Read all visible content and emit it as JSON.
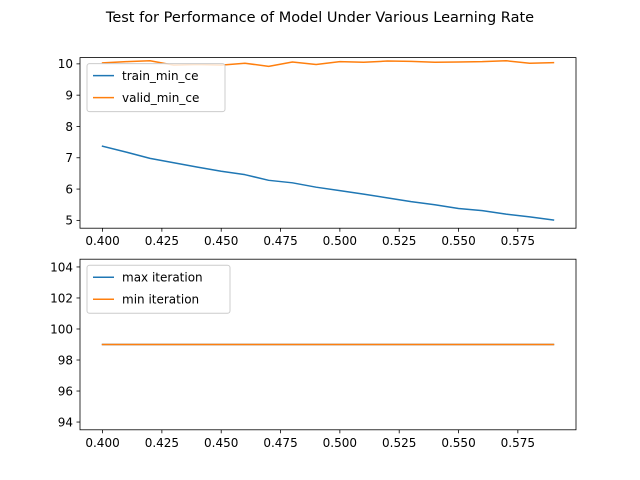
{
  "figure_title": "Test for Performance of Model Under Various Learning Rate",
  "chart_data": [
    {
      "type": "line",
      "x": [
        0.4,
        0.41,
        0.42,
        0.43,
        0.44,
        0.45,
        0.46,
        0.47,
        0.48,
        0.49,
        0.5,
        0.51,
        0.52,
        0.53,
        0.54,
        0.55,
        0.56,
        0.57,
        0.58,
        0.59
      ],
      "series": [
        {
          "name": "train_min_ce",
          "color": "#1f77b4",
          "values": [
            7.37,
            7.18,
            6.98,
            6.84,
            6.7,
            6.57,
            6.46,
            6.28,
            6.2,
            6.06,
            5.95,
            5.84,
            5.72,
            5.6,
            5.5,
            5.38,
            5.31,
            5.2,
            5.11,
            5.01
          ]
        },
        {
          "name": "valid_min_ce",
          "color": "#ff7f0e",
          "values": [
            10.03,
            10.07,
            10.1,
            9.96,
            9.98,
            9.96,
            10.02,
            9.92,
            10.06,
            9.98,
            10.07,
            10.05,
            10.09,
            10.08,
            10.05,
            10.06,
            10.07,
            10.1,
            10.02,
            10.04
          ]
        }
      ],
      "xlim": [
        0.3905,
        0.5995
      ],
      "ylim": [
        4.75,
        10.2
      ],
      "xticks": [
        0.4,
        0.425,
        0.45,
        0.475,
        0.5,
        0.525,
        0.55,
        0.575
      ],
      "xtick_labels": [
        "0.400",
        "0.425",
        "0.450",
        "0.475",
        "0.500",
        "0.525",
        "0.550",
        "0.575"
      ],
      "yticks": [
        5,
        6,
        7,
        8,
        9,
        10
      ],
      "ytick_labels": [
        "5",
        "6",
        "7",
        "8",
        "9",
        "10"
      ],
      "grid": false,
      "legend_position": "upper-left"
    },
    {
      "type": "line",
      "x": [
        0.4,
        0.41,
        0.42,
        0.43,
        0.44,
        0.45,
        0.46,
        0.47,
        0.48,
        0.49,
        0.5,
        0.51,
        0.52,
        0.53,
        0.54,
        0.55,
        0.56,
        0.57,
        0.58,
        0.59
      ],
      "series": [
        {
          "name": "max iteration",
          "color": "#1f77b4",
          "values": [
            99,
            99,
            99,
            99,
            99,
            99,
            99,
            99,
            99,
            99,
            99,
            99,
            99,
            99,
            99,
            99,
            99,
            99,
            99,
            99
          ]
        },
        {
          "name": "min iteration",
          "color": "#ff7f0e",
          "values": [
            99,
            99,
            99,
            99,
            99,
            99,
            99,
            99,
            99,
            99,
            99,
            99,
            99,
            99,
            99,
            99,
            99,
            99,
            99,
            99
          ]
        }
      ],
      "xlim": [
        0.3905,
        0.5995
      ],
      "ylim": [
        93.5,
        104.5
      ],
      "xticks": [
        0.4,
        0.425,
        0.45,
        0.475,
        0.5,
        0.525,
        0.55,
        0.575
      ],
      "xtick_labels": [
        "0.400",
        "0.425",
        "0.450",
        "0.475",
        "0.500",
        "0.525",
        "0.550",
        "0.575"
      ],
      "yticks": [
        94,
        96,
        98,
        100,
        102,
        104
      ],
      "ytick_labels": [
        "94",
        "96",
        "98",
        "100",
        "102",
        "104"
      ],
      "grid": false,
      "legend_position": "upper-left"
    }
  ]
}
